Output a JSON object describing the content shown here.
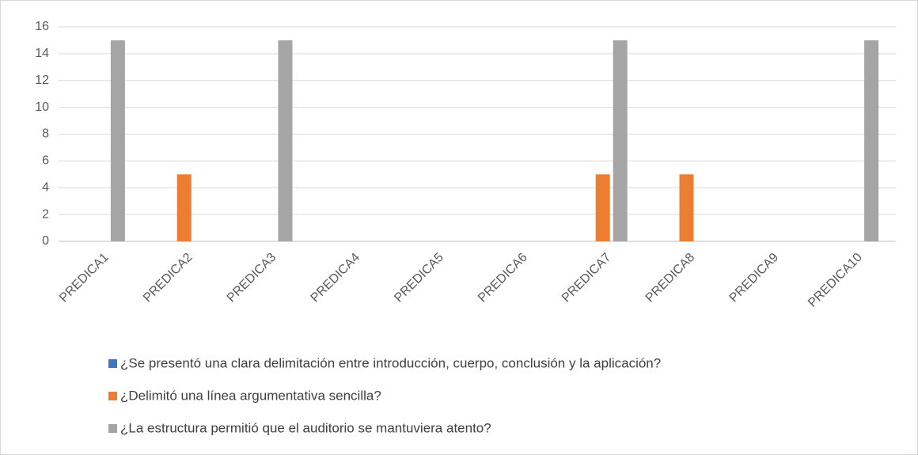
{
  "chart_data": {
    "type": "bar",
    "categories": [
      "PREDICA1",
      "PREDICA2",
      "PREDICA3",
      "PREDICA4",
      "PREDICA5",
      "PREDICA6",
      "PREDICA7",
      "PREDICA8",
      "PREDICA9",
      "PREDICA10"
    ],
    "series": [
      {
        "name": "¿Se presentó una clara delimitación entre introducción, cuerpo, conclusión y la aplicación?",
        "color": "#4472c4",
        "values": [
          0,
          0,
          0,
          0,
          0,
          0,
          0,
          0,
          0,
          0
        ]
      },
      {
        "name": "¿Delimitó una línea argumentativa sencilla?",
        "color": "#ed7d31",
        "values": [
          0,
          5,
          0,
          0,
          0,
          0,
          5,
          5,
          0,
          0
        ]
      },
      {
        "name": "¿La estructura permitió que el auditorio se mantuviera atento?",
        "color": "#a5a5a5",
        "values": [
          15,
          0,
          15,
          0,
          0,
          0,
          15,
          0,
          0,
          15
        ]
      }
    ],
    "ylim": [
      0,
      16
    ],
    "yticks": [
      0,
      2,
      4,
      6,
      8,
      10,
      12,
      14,
      16
    ],
    "grid": true,
    "legend": "bottom"
  }
}
